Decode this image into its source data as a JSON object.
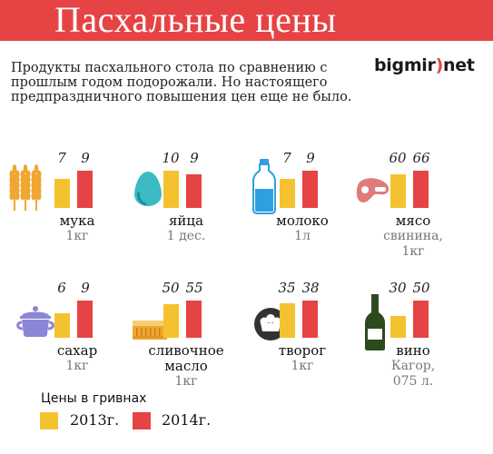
{
  "header": {
    "title": "Пасхальные цены",
    "subtitle": "Продукты пасхального стола  по сравнению с прошлым годом подорожали. Но настоящего предпраздничного повышения цен еще не было."
  },
  "logo": {
    "part1": "bigmir",
    "accent": ")",
    "part2": "net"
  },
  "colors": {
    "banner": "#e64344",
    "y2013": "#f5c22f",
    "y2014": "#e64344"
  },
  "chart_data": {
    "type": "bar",
    "series": [
      {
        "name": "2013г.",
        "values": [
          7,
          10,
          7,
          60,
          6,
          50,
          35,
          30
        ]
      },
      {
        "name": "2014г.",
        "values": [
          9,
          9,
          9,
          66,
          9,
          55,
          38,
          50
        ]
      }
    ],
    "categories": [
      "мука",
      "яйца",
      "молоко",
      "мясо",
      "сахар",
      "сливочное масло",
      "творог",
      "вино"
    ],
    "items": [
      {
        "name": "мука",
        "name2": "",
        "unit": "1кг",
        "unit2": "",
        "v2013": 7,
        "v2014": 9,
        "icon": "wheat-icon"
      },
      {
        "name": "яйца",
        "name2": "",
        "unit": "1 дес.",
        "unit2": "",
        "v2013": 10,
        "v2014": 9,
        "icon": "egg-icon"
      },
      {
        "name": "молоко",
        "name2": "",
        "unit": "1л",
        "unit2": "",
        "v2013": 7,
        "v2014": 9,
        "icon": "milk-bottle-icon"
      },
      {
        "name": "мясо",
        "name2": "",
        "unit": "свинина,",
        "unit2": "1кг",
        "v2013": 60,
        "v2014": 66,
        "icon": "meat-icon"
      },
      {
        "name": "сахар",
        "name2": "",
        "unit": "1кг",
        "unit2": "",
        "v2013": 6,
        "v2014": 9,
        "icon": "sugar-bowl-icon"
      },
      {
        "name": "сливочное",
        "name2": "масло",
        "unit": "1кг",
        "unit2": "",
        "v2013": 50,
        "v2014": 55,
        "icon": "butter-icon"
      },
      {
        "name": "творог",
        "name2": "",
        "unit": "1кг",
        "unit2": "",
        "v2013": 35,
        "v2014": 38,
        "icon": "cottage-cheese-icon"
      },
      {
        "name": "вино",
        "name2": "",
        "unit": "Кагор,",
        "unit2": "075 л.",
        "v2013": 30,
        "v2014": 50,
        "icon": "wine-bottle-icon"
      }
    ]
  },
  "legend": {
    "title": "Цены в гривнах",
    "y2013": "2013г.",
    "y2014": "2014г."
  }
}
